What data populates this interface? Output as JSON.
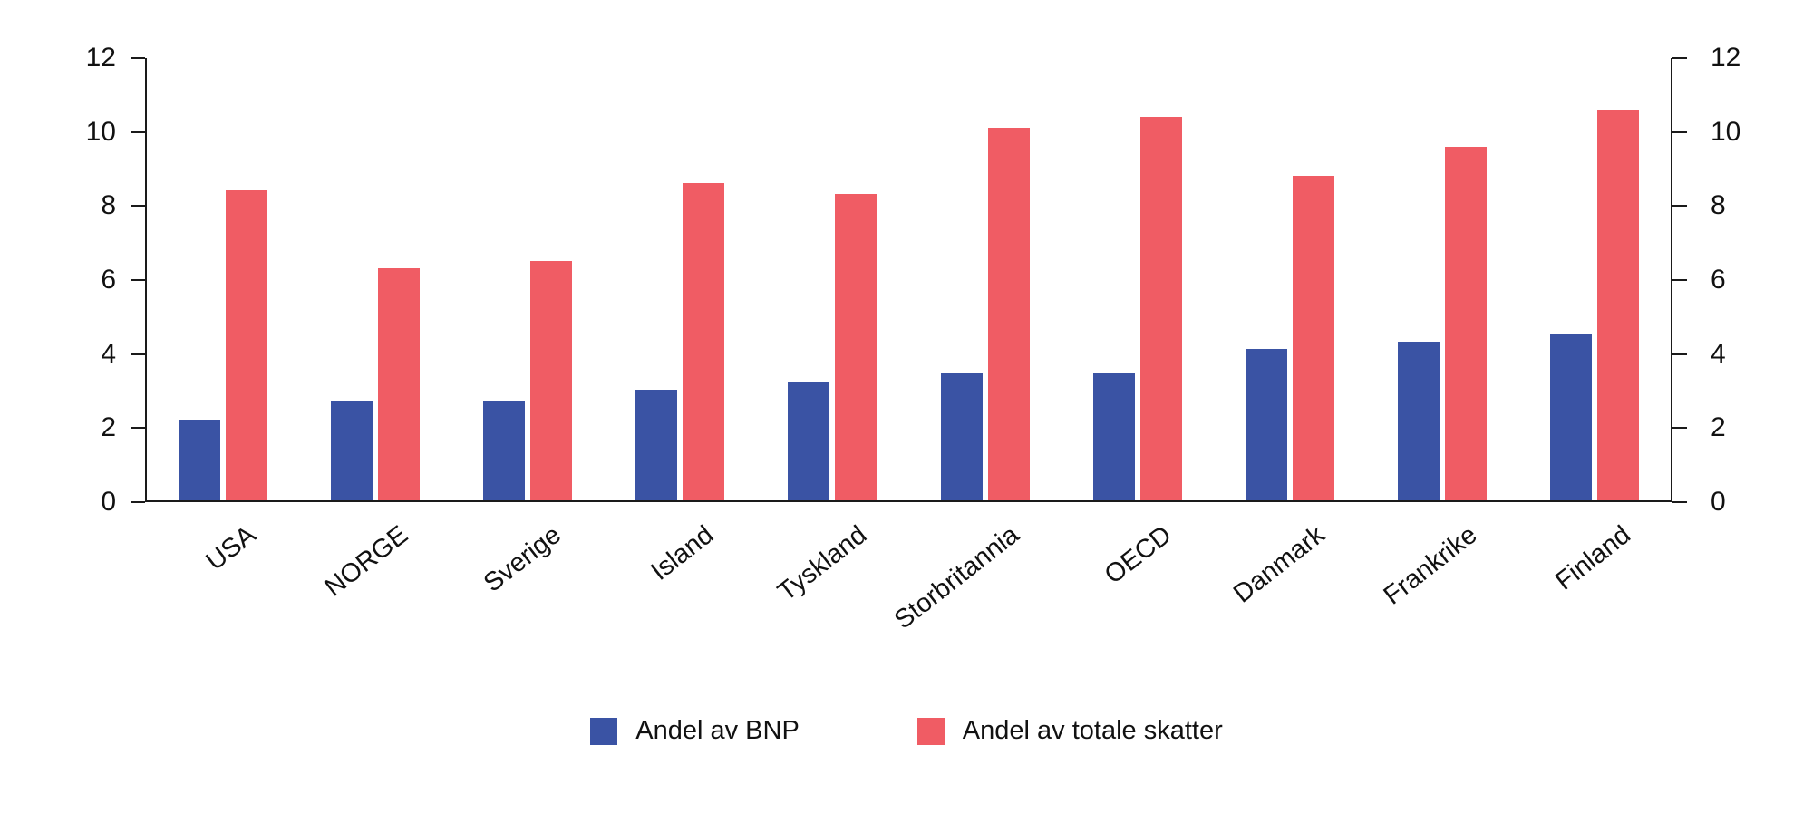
{
  "chart_data": {
    "type": "bar",
    "title": "",
    "xlabel": "",
    "ylabel": "",
    "ylim": [
      0,
      12
    ],
    "yticks": [
      0,
      2,
      4,
      6,
      8,
      10,
      12
    ],
    "grid": false,
    "legend_position": "bottom",
    "axis_color": "#1a1a1a",
    "background_color": "#ffffff",
    "categories": [
      "USA",
      "NORGE",
      "Sverige",
      "Island",
      "Tyskland",
      "Storbritannia",
      "OECD",
      "Danmark",
      "Frankrike",
      "Finland"
    ],
    "series": [
      {
        "name": "Andel av BNP",
        "color": "#3a53a4",
        "values": [
          2.2,
          2.7,
          2.7,
          3.0,
          3.2,
          3.45,
          3.45,
          4.1,
          4.3,
          4.5
        ]
      },
      {
        "name": "Andel av totale skatter",
        "color": "#f05c64",
        "values": [
          8.4,
          6.3,
          6.5,
          8.6,
          8.3,
          10.1,
          10.4,
          8.8,
          9.6,
          10.6
        ]
      }
    ]
  }
}
